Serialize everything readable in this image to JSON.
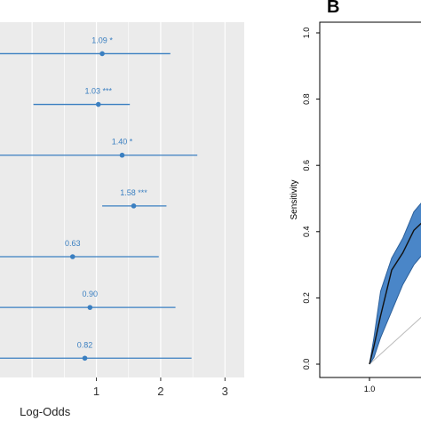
{
  "chart_data": [
    {
      "type": "forest",
      "xlabel": "Log-Odds",
      "ylabel": "",
      "xticks": [
        "1",
        "2",
        "3"
      ],
      "xlim": [
        -0.5,
        3.3
      ],
      "grid": true,
      "color": "#3a7fc1",
      "background": "#ebebeb",
      "rows": [
        {
          "estimate": 1.09,
          "low": -0.6,
          "high": 2.15,
          "label": "1.09 *"
        },
        {
          "estimate": 1.03,
          "low": 0.02,
          "high": 1.52,
          "label": "1.03 ***"
        },
        {
          "estimate": 1.4,
          "low": -0.6,
          "high": 2.57,
          "label": "1.40 *"
        },
        {
          "estimate": 1.58,
          "low": 1.09,
          "high": 2.09,
          "label": "1.58 ***"
        },
        {
          "estimate": 0.63,
          "low": -0.6,
          "high": 1.97,
          "label": "0.63"
        },
        {
          "estimate": 0.9,
          "low": -0.6,
          "high": 2.23,
          "label": "0.90"
        },
        {
          "estimate": 0.82,
          "low": -0.6,
          "high": 2.48,
          "label": "0.82"
        }
      ]
    },
    {
      "type": "area",
      "panel_label": "B",
      "xlabel": "",
      "ylabel": "Sensitivity",
      "yticks": [
        "0.0",
        "0.2",
        "0.4",
        "0.6",
        "0.8",
        "1.0"
      ],
      "xticks": [
        "1.0"
      ],
      "ylim": [
        0,
        1
      ],
      "band_color": "#4a86c8",
      "line_color": "#111111",
      "curve": {
        "x": [
          0,
          0.02,
          0.05,
          0.1,
          0.15,
          0.2,
          0.25,
          0.3
        ],
        "y": [
          0.0,
          0.05,
          0.15,
          0.28,
          0.34,
          0.4,
          0.44,
          0.46
        ],
        "upper": [
          0.0,
          0.08,
          0.22,
          0.32,
          0.38,
          0.46,
          0.5,
          0.52
        ],
        "lower": [
          0.0,
          0.02,
          0.08,
          0.16,
          0.24,
          0.3,
          0.34,
          0.36
        ]
      }
    }
  ]
}
